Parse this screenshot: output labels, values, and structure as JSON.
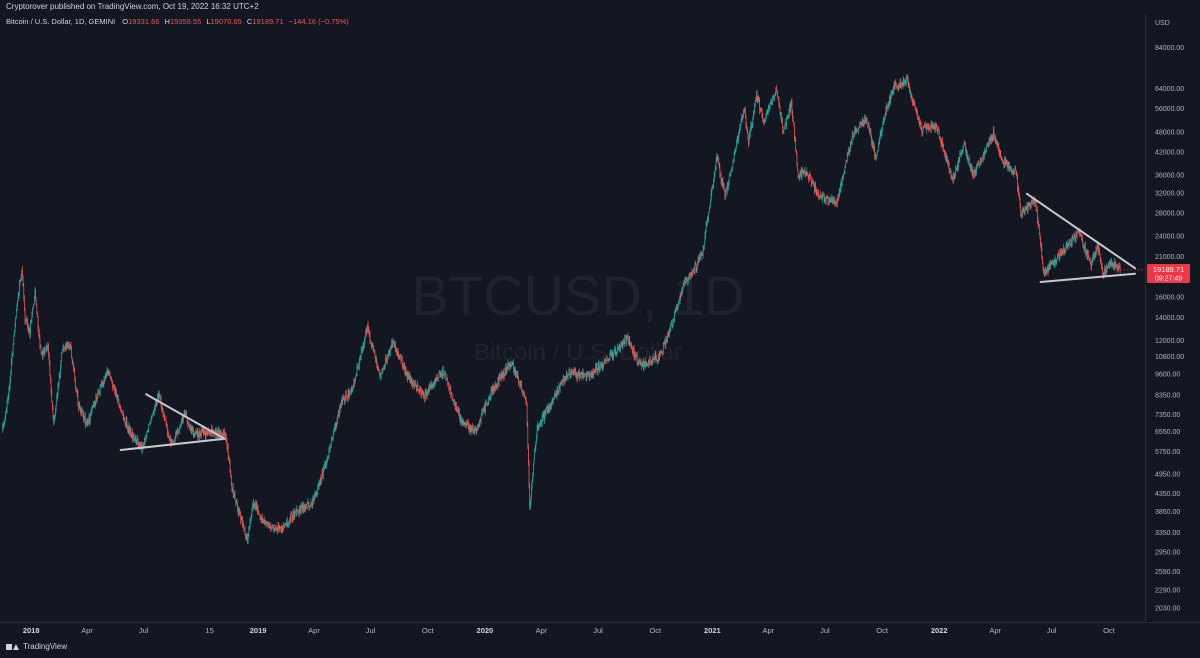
{
  "header": {
    "publisher_text": "Cryptorover published on TradingView.com, Oct 19, 2022 16:32 UTC+2"
  },
  "legend": {
    "symbol_text": "Bitcoin / U.S. Dollar, 1D, GEMINI",
    "open_label": "O",
    "open_value": "19331.66",
    "high_label": "H",
    "high_value": "19359.55",
    "low_label": "L",
    "low_value": "19070.65",
    "close_label": "C",
    "close_value": "19189.71",
    "change_value": "−144.16 (−0.75%)"
  },
  "watermark": {
    "main": "BTCUSD, 1D",
    "sub": "Bitcoin / U.S. Dollar"
  },
  "price_tag": {
    "price": "19189.71",
    "countdown": "09:27:49",
    "color": "#f23645"
  },
  "footer": {
    "logo_text": "TradingView"
  },
  "colors": {
    "background": "#131722",
    "up": "#26a69a",
    "down": "#ef5350",
    "trendline": "#c7c9cf"
  },
  "chart_data": {
    "type": "candlestick",
    "symbol": "BTCUSD",
    "interval": "1D",
    "exchange": "GEMINI",
    "y_scale": "log",
    "y_unit": "USD",
    "ylim": [
      1850,
      105000
    ],
    "xlim": [
      "2017-11-15",
      "2022-11-20"
    ],
    "grid": false,
    "y_ticks": [
      "84000.00",
      "64000.00",
      "56000.00",
      "48000.00",
      "42000.00",
      "36000.00",
      "32000.00",
      "28000.00",
      "24000.00",
      "21000.00",
      "16000.00",
      "14000.00",
      "12000.00",
      "10800.00",
      "9600.00",
      "8350.00",
      "7350.00",
      "6550.00",
      "5750.00",
      "4950.00",
      "4350.00",
      "3850.00",
      "3350.00",
      "2950.00",
      "2590.00",
      "2290.00",
      "2030.00"
    ],
    "x_ticks": [
      {
        "label": "2018",
        "date": "2018-01-01",
        "year": true
      },
      {
        "label": "Apr",
        "date": "2018-04-01",
        "year": false
      },
      {
        "label": "Jul",
        "date": "2018-07-01",
        "year": false
      },
      {
        "label": "15",
        "date": "2018-10-15",
        "year": false
      },
      {
        "label": "2019",
        "date": "2019-01-01",
        "year": true
      },
      {
        "label": "Apr",
        "date": "2019-04-01",
        "year": false
      },
      {
        "label": "Jul",
        "date": "2019-07-01",
        "year": false
      },
      {
        "label": "Oct",
        "date": "2019-10-01",
        "year": false
      },
      {
        "label": "2020",
        "date": "2020-01-01",
        "year": true
      },
      {
        "label": "Apr",
        "date": "2020-04-01",
        "year": false
      },
      {
        "label": "Jul",
        "date": "2020-07-01",
        "year": false
      },
      {
        "label": "Oct",
        "date": "2020-10-01",
        "year": false
      },
      {
        "label": "2021",
        "date": "2021-01-01",
        "year": true
      },
      {
        "label": "Apr",
        "date": "2021-04-01",
        "year": false
      },
      {
        "label": "Jul",
        "date": "2021-07-01",
        "year": false
      },
      {
        "label": "Oct",
        "date": "2021-10-01",
        "year": false
      },
      {
        "label": "2022",
        "date": "2022-01-01",
        "year": true
      },
      {
        "label": "Apr",
        "date": "2022-04-01",
        "year": false
      },
      {
        "label": "Jul",
        "date": "2022-07-01",
        "year": false
      },
      {
        "label": "Oct",
        "date": "2022-10-01",
        "year": false
      }
    ],
    "price_path": [
      [
        "2017-11-15",
        6500
      ],
      [
        "2017-11-25",
        8200
      ],
      [
        "2017-12-07",
        14000
      ],
      [
        "2017-12-17",
        19500
      ],
      [
        "2017-12-22",
        13800
      ],
      [
        "2017-12-30",
        12800
      ],
      [
        "2018-01-07",
        16500
      ],
      [
        "2018-01-17",
        10800
      ],
      [
        "2018-01-28",
        11500
      ],
      [
        "2018-02-06",
        6900
      ],
      [
        "2018-02-20",
        11200
      ],
      [
        "2018-03-05",
        11500
      ],
      [
        "2018-03-18",
        7800
      ],
      [
        "2018-04-01",
        6800
      ],
      [
        "2018-04-12",
        7900
      ],
      [
        "2018-05-05",
        9800
      ],
      [
        "2018-05-28",
        7300
      ],
      [
        "2018-06-12",
        6400
      ],
      [
        "2018-06-29",
        5900
      ],
      [
        "2018-07-25",
        8400
      ],
      [
        "2018-08-14",
        6000
      ],
      [
        "2018-09-05",
        7400
      ],
      [
        "2018-09-20",
        6400
      ],
      [
        "2018-10-15",
        6600
      ],
      [
        "2018-11-10",
        6400
      ],
      [
        "2018-11-20",
        4500
      ],
      [
        "2018-12-15",
        3200
      ],
      [
        "2018-12-24",
        4100
      ],
      [
        "2019-01-10",
        3600
      ],
      [
        "2019-02-07",
        3400
      ],
      [
        "2019-02-28",
        3800
      ],
      [
        "2019-04-01",
        4150
      ],
      [
        "2019-04-20",
        5300
      ],
      [
        "2019-05-15",
        8000
      ],
      [
        "2019-06-01",
        8600
      ],
      [
        "2019-06-26",
        13000
      ],
      [
        "2019-07-16",
        9500
      ],
      [
        "2019-08-06",
        11900
      ],
      [
        "2019-08-29",
        9500
      ],
      [
        "2019-09-24",
        8300
      ],
      [
        "2019-10-26",
        9800
      ],
      [
        "2019-11-25",
        6900
      ],
      [
        "2019-12-17",
        6600
      ],
      [
        "2020-01-15",
        8800
      ],
      [
        "2020-02-13",
        10400
      ],
      [
        "2020-03-08",
        8000
      ],
      [
        "2020-03-13",
        4000
      ],
      [
        "2020-03-25",
        6700
      ],
      [
        "2020-04-30",
        8800
      ],
      [
        "2020-05-15",
        9700
      ],
      [
        "2020-06-15",
        9400
      ],
      [
        "2020-07-27",
        11000
      ],
      [
        "2020-08-17",
        12200
      ],
      [
        "2020-09-08",
        10100
      ],
      [
        "2020-10-08",
        10800
      ],
      [
        "2020-10-25",
        13100
      ],
      [
        "2020-11-18",
        17800
      ],
      [
        "2020-12-01",
        19000
      ],
      [
        "2020-12-16",
        21500
      ],
      [
        "2021-01-08",
        40500
      ],
      [
        "2021-01-22",
        31000
      ],
      [
        "2021-02-21",
        56000
      ],
      [
        "2021-02-28",
        45000
      ],
      [
        "2021-03-13",
        61000
      ],
      [
        "2021-03-25",
        51500
      ],
      [
        "2021-04-14",
        63500
      ],
      [
        "2021-04-25",
        48000
      ],
      [
        "2021-05-08",
        58000
      ],
      [
        "2021-05-19",
        36000
      ],
      [
        "2021-06-01",
        36500
      ],
      [
        "2021-06-22",
        31500
      ],
      [
        "2021-07-20",
        29800
      ],
      [
        "2021-08-14",
        47000
      ],
      [
        "2021-09-06",
        52500
      ],
      [
        "2021-09-21",
        40500
      ],
      [
        "2021-10-06",
        55000
      ],
      [
        "2021-10-20",
        64500
      ],
      [
        "2021-11-10",
        67500
      ],
      [
        "2021-11-26",
        54000
      ],
      [
        "2021-12-04",
        48500
      ],
      [
        "2021-12-27",
        50500
      ],
      [
        "2022-01-22",
        35000
      ],
      [
        "2022-02-10",
        44000
      ],
      [
        "2022-02-24",
        36000
      ],
      [
        "2022-03-29",
        47500
      ],
      [
        "2022-04-11",
        40000
      ],
      [
        "2022-05-05",
        36500
      ],
      [
        "2022-05-12",
        28000
      ],
      [
        "2022-06-05",
        30500
      ],
      [
        "2022-06-18",
        18800
      ],
      [
        "2022-07-10",
        20800
      ],
      [
        "2022-08-14",
        24800
      ],
      [
        "2022-09-01",
        19800
      ],
      [
        "2022-09-13",
        22500
      ],
      [
        "2022-09-21",
        18600
      ],
      [
        "2022-10-05",
        20300
      ],
      [
        "2022-10-19",
        19189.71
      ]
    ],
    "trendlines": [
      {
        "from": [
          "2018-07-05",
          8400
        ],
        "to": [
          "2018-11-08",
          6250
        ]
      },
      {
        "from": [
          "2018-05-25",
          5800
        ],
        "to": [
          "2018-11-08",
          6250
        ]
      },
      {
        "from": [
          "2022-05-22",
          31800
        ],
        "to": [
          "2022-11-12",
          19400
        ]
      },
      {
        "from": [
          "2022-06-13",
          17700
        ],
        "to": [
          "2022-11-12",
          18700
        ]
      }
    ]
  }
}
